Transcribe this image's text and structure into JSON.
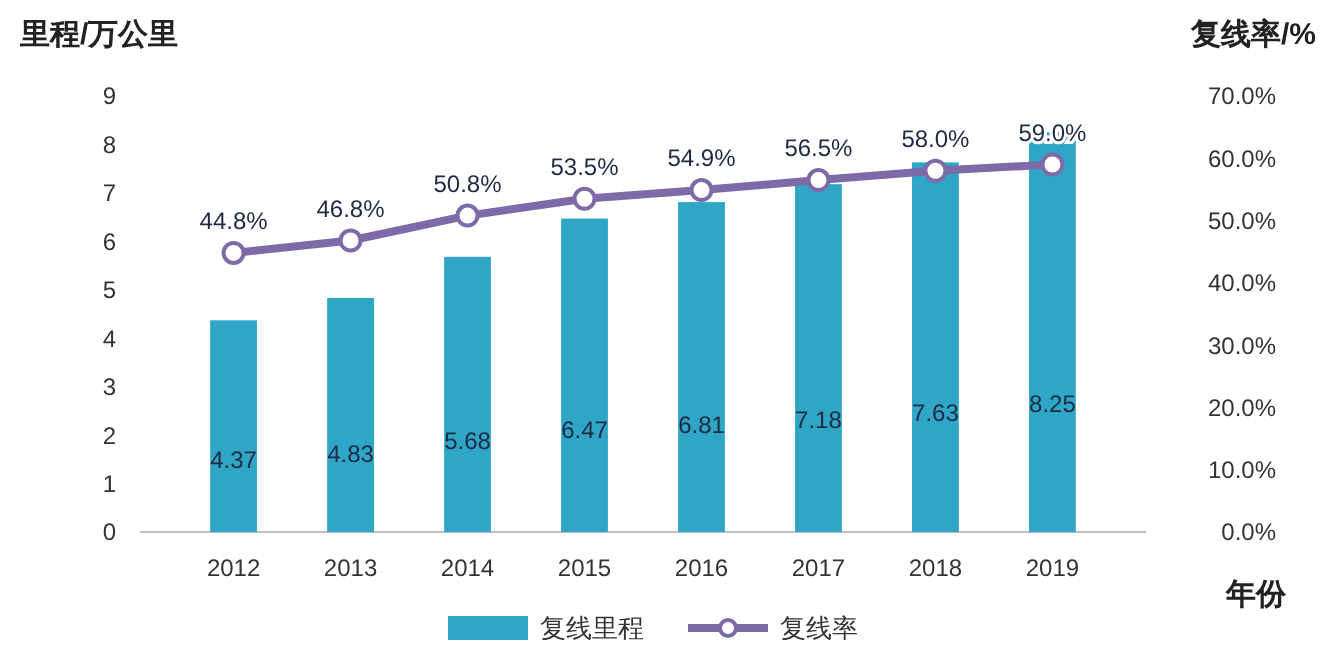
{
  "chart_data": {
    "type": "bar",
    "ylabel": "里程/万公里",
    "y2label": "复线率/%",
    "xlabel": "年份",
    "categories": [
      "2012",
      "2013",
      "2014",
      "2015",
      "2016",
      "2017",
      "2018",
      "2019"
    ],
    "series": [
      {
        "name": "复线里程",
        "color": "#2fa6c6",
        "values": [
          4.37,
          4.83,
          5.68,
          6.47,
          6.81,
          7.18,
          7.63,
          8.25
        ],
        "value_labels": [
          "4.37",
          "4.83",
          "5.68",
          "6.47",
          "6.81",
          "7.18",
          "7.63",
          "8.25"
        ]
      },
      {
        "name": "复线率",
        "type": "line",
        "axis": "y2",
        "color": "#7d6aa6",
        "marker": "circle",
        "values": [
          44.8,
          46.8,
          50.8,
          53.5,
          54.9,
          56.5,
          58.0,
          59.0
        ],
        "value_labels": [
          "44.8%",
          "46.8%",
          "50.8%",
          "53.5%",
          "54.9%",
          "56.5%",
          "58.0%",
          "59.0%"
        ]
      }
    ],
    "ylim": [
      0,
      9
    ],
    "yticks": [
      0,
      1,
      2,
      3,
      4,
      5,
      6,
      7,
      8,
      9
    ],
    "y2lim": [
      0,
      70
    ],
    "y2ticks": [
      {
        "value": 0,
        "label": "0.0%"
      },
      {
        "value": 10,
        "label": "10.0%"
      },
      {
        "value": 20,
        "label": "20.0%"
      },
      {
        "value": 30,
        "label": "30.0%"
      },
      {
        "value": 40,
        "label": "40.0%"
      },
      {
        "value": 50,
        "label": "50.0%"
      },
      {
        "value": 60,
        "label": "60.0%"
      },
      {
        "value": 70,
        "label": "70.0%"
      }
    ],
    "grid": false,
    "legend": "bottom"
  }
}
